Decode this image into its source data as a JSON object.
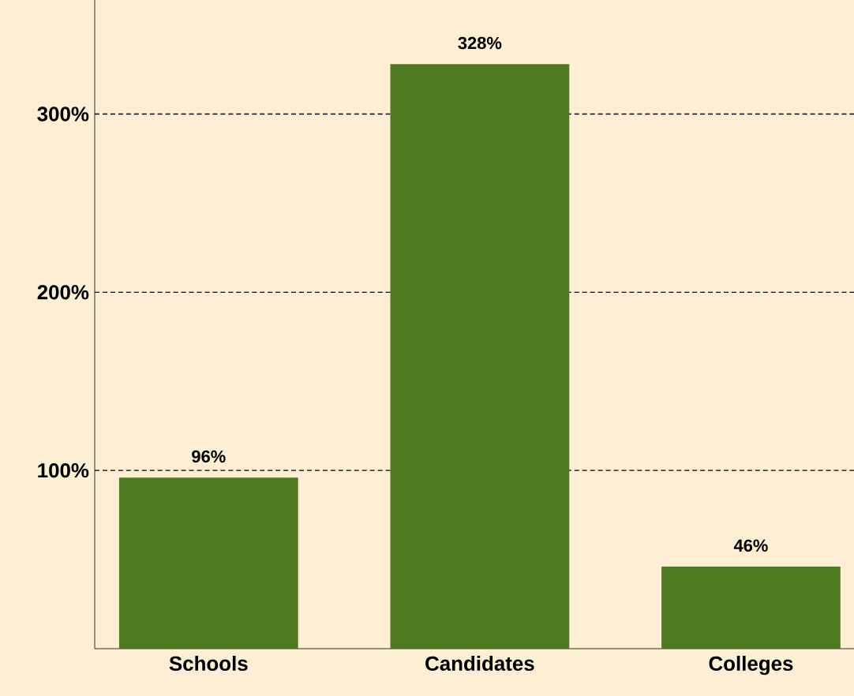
{
  "chart_data": {
    "type": "bar",
    "categories": [
      "Schools",
      "Candidates",
      "Colleges"
    ],
    "values": [
      96,
      328,
      46
    ],
    "value_labels": [
      "96%",
      "328%",
      "46%"
    ],
    "color": "#4f7a22",
    "yticks": [
      {
        "value": 100,
        "label": "100%"
      },
      {
        "value": 200,
        "label": "200%"
      },
      {
        "value": 300,
        "label": "300%"
      }
    ],
    "ylim": [
      0,
      364
    ],
    "grid": "y"
  }
}
